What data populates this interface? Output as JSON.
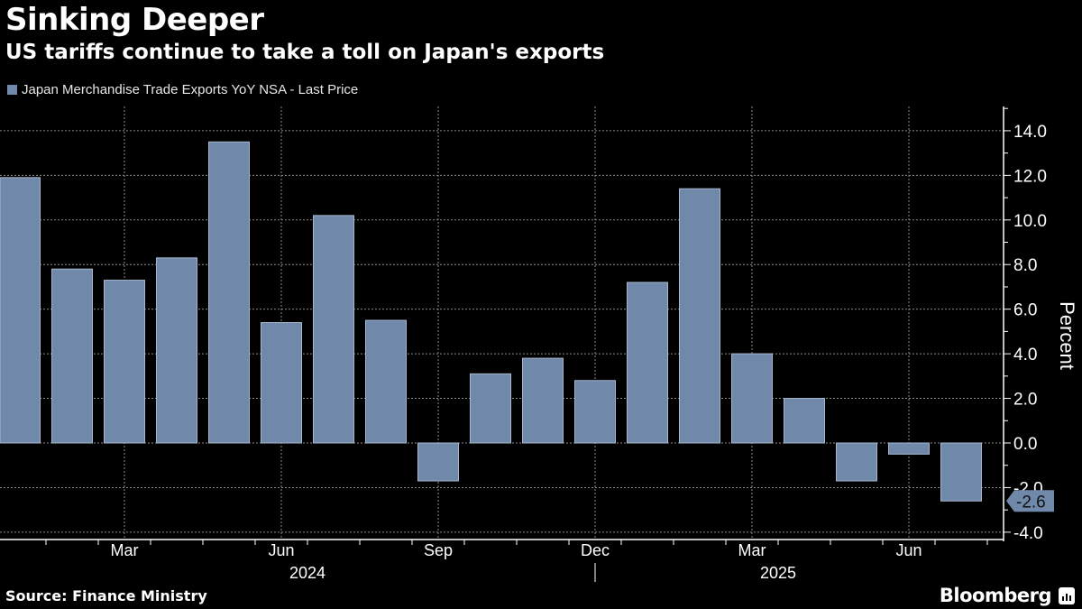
{
  "header": {
    "title": "Sinking Deeper",
    "subtitle": "US tariffs continue to take a toll on Japan's exports"
  },
  "footer": {
    "source": "Source: Finance Ministry",
    "brand": "Bloomberg",
    "brand_icon": "bloomberg-chart-icon"
  },
  "colors": {
    "background": "#000000",
    "bar": "#7089ab",
    "bar_edge": "#a6b6cc",
    "grid": "#8c8c8c",
    "axis": "#ffffff"
  },
  "chart_data": {
    "type": "bar",
    "title": "Sinking Deeper",
    "subtitle": "US tariffs continue to take a toll on Japan's exports",
    "legend": [
      "Japan Merchandise Trade Exports YoY NSA - Last Price"
    ],
    "legend_position": "top-left",
    "ylabel": "Percent",
    "xlabel": "",
    "ylim": [
      -4.4,
      15.0
    ],
    "y_axis_side": "right",
    "y_ticks": [
      14.0,
      12.0,
      10.0,
      8.0,
      6.0,
      4.0,
      2.0,
      0.0,
      -2.0,
      -4.0
    ],
    "y_tick_labels": [
      "14.0",
      "12.0",
      "10.0",
      "8.0",
      "6.0",
      "4.0",
      "2.0",
      "0.0",
      "-2.0",
      "-4.0"
    ],
    "grid": true,
    "categories": [
      "Jan 2024",
      "Feb 2024",
      "Mar 2024",
      "Apr 2024",
      "May 2024",
      "Jun 2024",
      "Jul 2024",
      "Aug 2024",
      "Sep 2024",
      "Oct 2024",
      "Nov 2024",
      "Dec 2024",
      "Jan 2025",
      "Feb 2025",
      "Mar 2025",
      "Apr 2025",
      "May 2025",
      "Jun 2025",
      "Jul 2025"
    ],
    "series": [
      {
        "name": "Japan Merchandise Trade Exports YoY NSA - Last Price",
        "values": [
          11.9,
          7.8,
          7.3,
          8.3,
          13.5,
          5.4,
          10.2,
          5.5,
          -1.7,
          3.1,
          3.8,
          2.8,
          7.2,
          11.4,
          4.0,
          2.0,
          -1.7,
          -0.5,
          -2.6
        ]
      }
    ],
    "x_tick_labels": [
      {
        "label": "Mar",
        "index": 2
      },
      {
        "label": "Jun",
        "index": 5
      },
      {
        "label": "Sep",
        "index": 8
      },
      {
        "label": "Dec",
        "index": 11
      },
      {
        "label": "Mar",
        "index": 14
      },
      {
        "label": "Jun",
        "index": 17
      }
    ],
    "year_labels": [
      {
        "label": "2024",
        "index": 5.5
      },
      {
        "label": "2025",
        "index": 14.5
      }
    ],
    "year_divider_index": 11,
    "last_value_label": "-2.6"
  }
}
